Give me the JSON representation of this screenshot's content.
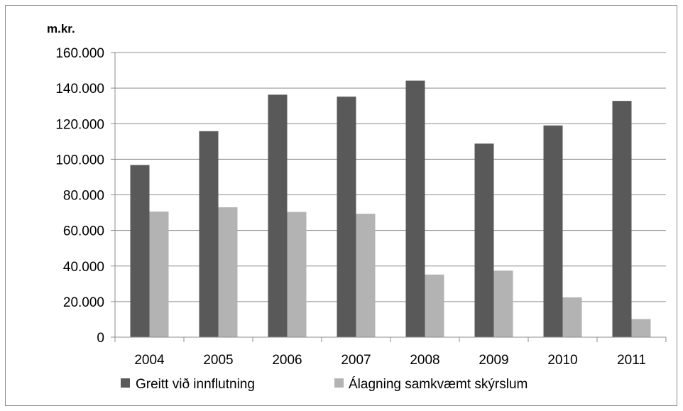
{
  "chart_data": {
    "type": "bar",
    "y_unit_label": "m.kr.",
    "categories": [
      "2004",
      "2005",
      "2006",
      "2007",
      "2008",
      "2009",
      "2010",
      "2011"
    ],
    "series": [
      {
        "name": "Greitt við innflutning",
        "color": "#595959",
        "values": [
          96800,
          115800,
          136300,
          135200,
          144200,
          108800,
          119000,
          132800
        ]
      },
      {
        "name": "Álagning samkvæmt skýrslum",
        "color": "#b3b3b3",
        "values": [
          70600,
          73000,
          70400,
          69400,
          35200,
          37400,
          22400,
          10200
        ]
      }
    ],
    "ylim": [
      0,
      160000
    ],
    "y_ticks": [
      0,
      20000,
      40000,
      60000,
      80000,
      100000,
      120000,
      140000,
      160000
    ],
    "y_tick_labels": [
      "0",
      "20.000",
      "40.000",
      "60.000",
      "80.000",
      "100.000",
      "120.000",
      "140.000",
      "160.000"
    ],
    "grid": true,
    "legend_position": "bottom"
  }
}
